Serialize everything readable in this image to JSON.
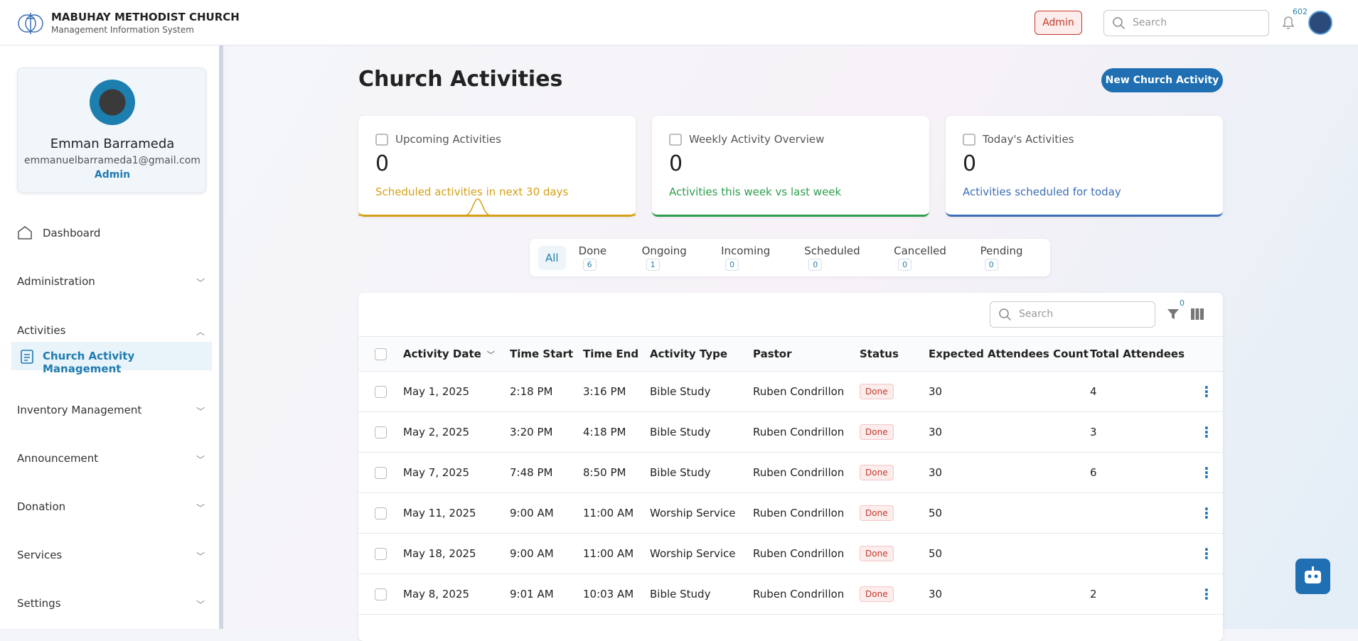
{
  "header": {
    "org": "MABUHAY METHODIST CHURCH",
    "subtitle": "Management Information System",
    "role": "Admin",
    "search_placeholder": "Search",
    "notifications": 602
  },
  "profile": {
    "name": "Emman Barrameda",
    "email": "emmanuelbarrameda1@gmail.com",
    "role": "Admin"
  },
  "sidebar": [
    {
      "label": "Dashboard"
    },
    {
      "label": "Administration"
    },
    {
      "label": "Activities",
      "children": [
        "Church Activity Management"
      ]
    },
    {
      "label": "Inventory Management"
    },
    {
      "label": "Announcement"
    },
    {
      "label": "Donation"
    },
    {
      "label": "Services"
    },
    {
      "label": "Settings"
    }
  ],
  "page": {
    "title": "Church Activities",
    "button": "New Church Activity"
  },
  "cards": [
    {
      "title": "Upcoming Activities",
      "value": 0,
      "caption": "Scheduled activities in next 30 days",
      "color": "#d4a017"
    },
    {
      "title": "Weekly Activity Overview",
      "value": 0,
      "caption": "Activities this week vs last week",
      "color": "#2e9e4f"
    },
    {
      "title": "Today's Activities",
      "value": 0,
      "caption": "Activities scheduled for today",
      "color": "#3b6fb6"
    }
  ],
  "tabs": [
    {
      "label": "All"
    },
    {
      "label": "Done",
      "count": 6
    },
    {
      "label": "Ongoing",
      "count": 1
    },
    {
      "label": "Incoming",
      "count": 0
    },
    {
      "label": "Scheduled",
      "count": 0
    },
    {
      "label": "Cancelled",
      "count": 0
    },
    {
      "label": "Pending",
      "count": 0
    }
  ],
  "table": {
    "search_placeholder": "Search",
    "filter_count": 0,
    "columns": [
      "Activity Date",
      "Time Start",
      "Time End",
      "Activity Type",
      "Pastor",
      "Status",
      "Expected Attendees Count",
      "Total Attendees"
    ],
    "rows": [
      [
        "May 1, 2025",
        "2:18 PM",
        "3:16 PM",
        "Bible Study",
        "Ruben Condrillon",
        "Done",
        30,
        4
      ],
      [
        "May 2, 2025",
        "3:20 PM",
        "4:18 PM",
        "Bible Study",
        "Ruben Condrillon",
        "Done",
        30,
        3
      ],
      [
        "May 7, 2025",
        "7:48 PM",
        "8:50 PM",
        "Bible Study",
        "Ruben Condrillon",
        "Done",
        30,
        6
      ],
      [
        "May 11, 2025",
        "9:00 AM",
        "11:00 AM",
        "Worship Service",
        "Ruben Condrillon",
        "Done",
        50,
        null
      ],
      [
        "May 18, 2025",
        "9:00 AM",
        "11:00 AM",
        "Worship Service",
        "Ruben Condrillon",
        "Done",
        50,
        null
      ],
      [
        "May 8, 2025",
        "9:01 AM",
        "10:03 AM",
        "Bible Study",
        "Ruben Condrillon",
        "Done",
        30,
        2
      ]
    ]
  }
}
